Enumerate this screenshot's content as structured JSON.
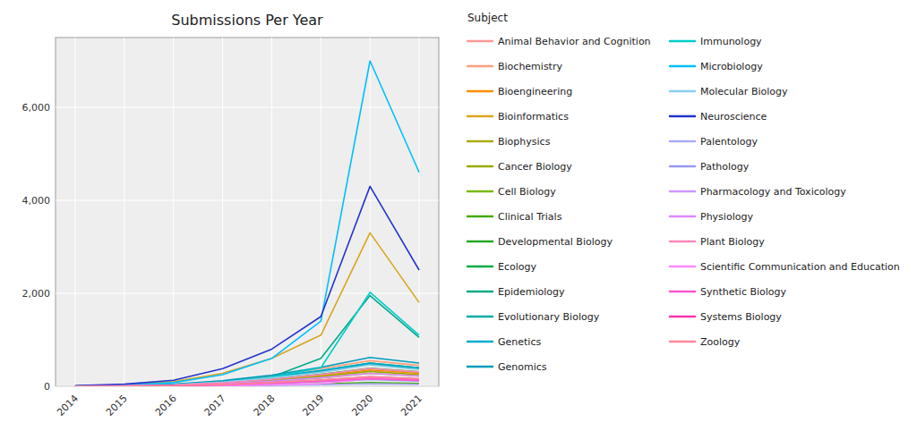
{
  "chart_data": {
    "type": "line",
    "title": "Submissions Per Year",
    "legend_title": "Subject",
    "legend": "right",
    "grid": true,
    "x": [
      2014,
      2015,
      2016,
      2017,
      2018,
      2019,
      2020,
      2021
    ],
    "xlim": [
      2013.6,
      2021.4
    ],
    "xticks": [
      2014,
      2015,
      2016,
      2017,
      2018,
      2019,
      2020,
      2021
    ],
    "ylim": [
      0,
      7500
    ],
    "yticks": [
      0,
      {
        "value": 2000,
        "label": "2,000"
      },
      {
        "value": 4000,
        "label": "4,000"
      },
      {
        "value": 6000,
        "label": "6,000"
      }
    ],
    "series": [
      {
        "name": "Animal Behavior and Cognition",
        "color": "#FF9999",
        "values": [
          5,
          10,
          30,
          80,
          150,
          250,
          380,
          300
        ]
      },
      {
        "name": "Biochemistry",
        "color": "#FFA07A",
        "values": [
          5,
          15,
          40,
          110,
          220,
          380,
          550,
          450
        ]
      },
      {
        "name": "Bioengineering",
        "color": "#FF8C00",
        "values": [
          3,
          8,
          25,
          70,
          140,
          230,
          350,
          280
        ]
      },
      {
        "name": "Bioinformatics",
        "color": "#DAA520",
        "values": [
          10,
          30,
          100,
          280,
          600,
          1100,
          3300,
          1800
        ]
      },
      {
        "name": "Biophysics",
        "color": "#AAAA00",
        "values": [
          3,
          8,
          20,
          55,
          110,
          180,
          280,
          220
        ]
      },
      {
        "name": "Cancer Biology",
        "color": "#99AA00",
        "values": [
          3,
          8,
          22,
          60,
          120,
          210,
          320,
          250
        ]
      },
      {
        "name": "Cell Biology",
        "color": "#77BB00",
        "values": [
          5,
          12,
          35,
          95,
          190,
          320,
          480,
          380
        ]
      },
      {
        "name": "Clinical Trials",
        "color": "#44AA00",
        "values": [
          1,
          2,
          5,
          15,
          30,
          50,
          80,
          60
        ]
      },
      {
        "name": "Developmental Biology",
        "color": "#22AA22",
        "values": [
          4,
          10,
          28,
          75,
          150,
          260,
          390,
          310
        ]
      },
      {
        "name": "Ecology",
        "color": "#00AA44",
        "values": [
          5,
          12,
          35,
          95,
          190,
          330,
          500,
          400
        ]
      },
      {
        "name": "Epidemiology",
        "color": "#00AA88",
        "values": [
          3,
          8,
          20,
          55,
          200,
          600,
          1950,
          1050
        ]
      },
      {
        "name": "Evolutionary Biology",
        "color": "#00AAAA",
        "values": [
          5,
          12,
          35,
          95,
          190,
          320,
          480,
          380
        ]
      },
      {
        "name": "Genetics",
        "color": "#00AACC",
        "values": [
          5,
          13,
          38,
          100,
          200,
          340,
          500,
          400
        ]
      },
      {
        "name": "Genomics",
        "color": "#009BBB",
        "values": [
          5,
          15,
          45,
          120,
          240,
          410,
          620,
          500
        ]
      },
      {
        "name": "Immunology",
        "color": "#00CCCC",
        "values": [
          5,
          12,
          35,
          90,
          200,
          400,
          2020,
          1100
        ]
      },
      {
        "name": "Microbiology",
        "color": "#00BFFF",
        "values": [
          8,
          25,
          80,
          250,
          600,
          1400,
          7000,
          4600
        ]
      },
      {
        "name": "Molecular Biology",
        "color": "#87CEEB",
        "values": [
          5,
          12,
          35,
          90,
          180,
          300,
          460,
          360
        ]
      },
      {
        "name": "Neuroscience",
        "color": "#2233CC",
        "values": [
          15,
          45,
          130,
          380,
          800,
          1500,
          4300,
          2500
        ]
      },
      {
        "name": "Palentology",
        "color": "#AAAAFF",
        "values": [
          1,
          2,
          5,
          12,
          22,
          35,
          55,
          40
        ]
      },
      {
        "name": "Pathology",
        "color": "#9999EE",
        "values": [
          2,
          4,
          10,
          28,
          55,
          95,
          145,
          110
        ]
      },
      {
        "name": "Pharmacology and Toxicology",
        "color": "#CC99FF",
        "values": [
          2,
          5,
          14,
          38,
          75,
          130,
          195,
          155
        ]
      },
      {
        "name": "Physiology",
        "color": "#DD88FF",
        "values": [
          3,
          7,
          20,
          54,
          108,
          185,
          280,
          220
        ]
      },
      {
        "name": "Plant Biology",
        "color": "#FF88BB",
        "values": [
          4,
          10,
          28,
          75,
          150,
          255,
          385,
          305
        ]
      },
      {
        "name": "Scientific Communication and Education",
        "color": "#FF88FF",
        "values": [
          1,
          2,
          6,
          16,
          32,
          55,
          165,
          130
        ]
      },
      {
        "name": "Synthetic Biology",
        "color": "#FF55CC",
        "values": [
          2,
          4,
          12,
          32,
          63,
          108,
          163,
          128
        ]
      },
      {
        "name": "Systems Biology",
        "color": "#FF33AA",
        "values": [
          2,
          5,
          15,
          40,
          80,
          135,
          205,
          162
        ]
      },
      {
        "name": "Zoology",
        "color": "#FF8899",
        "values": [
          2,
          5,
          15,
          40,
          80,
          135,
          200,
          158
        ]
      }
    ]
  }
}
